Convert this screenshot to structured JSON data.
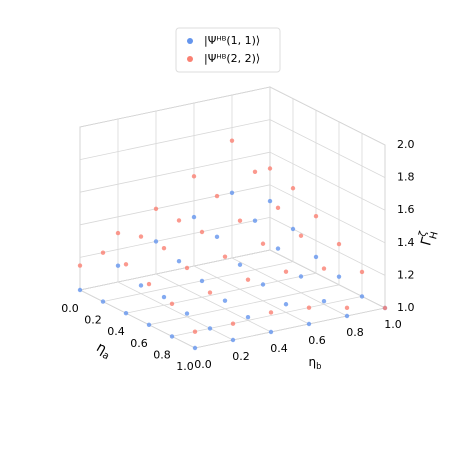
{
  "chart_data": {
    "type": "scatter3d",
    "xlabel": {
      "base": "η",
      "sub": "a"
    },
    "ylabel": {
      "base": "η",
      "sub": "b"
    },
    "zlabel": {
      "base": "Γ",
      "sub": "H",
      "sup": "ζ"
    },
    "x": [
      0,
      0.2,
      0.4,
      0.6,
      0.8,
      1
    ],
    "y": [
      0,
      0.2,
      0.4,
      0.6,
      0.8,
      1
    ],
    "xlim": [
      0,
      1
    ],
    "ylim": [
      0,
      1
    ],
    "zlim": [
      1,
      2
    ],
    "xticks": [
      {
        "value": 0,
        "label": "0.0"
      },
      0.2,
      0.4,
      0.6,
      0.8,
      {
        "value": 1,
        "label": "1.0"
      }
    ],
    "yticks": [
      {
        "value": 0,
        "label": "0.0"
      },
      0.2,
      0.4,
      0.6,
      0.8,
      {
        "value": 1,
        "label": "1.0"
      }
    ],
    "zticks": [
      {
        "value": 1,
        "label": "1.0"
      },
      1.2,
      1.4,
      1.6,
      1.8,
      {
        "value": 2,
        "label": "2.0"
      }
    ],
    "grid": true,
    "legend": "top",
    "series": [
      {
        "name": "|Ψᴴᴮ(1, 1)⟩",
        "color": "#6495ed",
        "z": [
          [
            1.0,
            1.1,
            1.2,
            1.3,
            1.4,
            1.3
          ],
          [
            1.0,
            1.05,
            1.15,
            1.25,
            1.3,
            1.2
          ],
          [
            1.0,
            1.05,
            1.1,
            1.15,
            1.2,
            1.1
          ],
          [
            1.0,
            1.02,
            1.05,
            1.1,
            1.1,
            1.05
          ],
          [
            1.0,
            1.0,
            1.02,
            1.05,
            1.02,
            1.0
          ],
          [
            1.0,
            1.0,
            1.0,
            1.0,
            1.0,
            1.0
          ]
        ]
      },
      {
        "name": "|Ψᴴᴮ(2, 2)⟩",
        "color": "#fa8072",
        "z": [
          [
            1.15,
            1.3,
            1.4,
            1.55,
            1.72,
            1.5
          ],
          [
            1.3,
            1.35,
            1.4,
            1.5,
            1.6,
            1.45
          ],
          [
            1.3,
            1.35,
            1.4,
            1.42,
            1.45,
            1.35
          ],
          [
            1.25,
            1.3,
            1.32,
            1.35,
            1.35,
            1.25
          ],
          [
            1.2,
            1.22,
            1.25,
            1.25,
            1.22,
            1.15
          ],
          [
            1.1,
            1.1,
            1.12,
            1.1,
            1.05,
            1.0
          ]
        ]
      }
    ]
  }
}
